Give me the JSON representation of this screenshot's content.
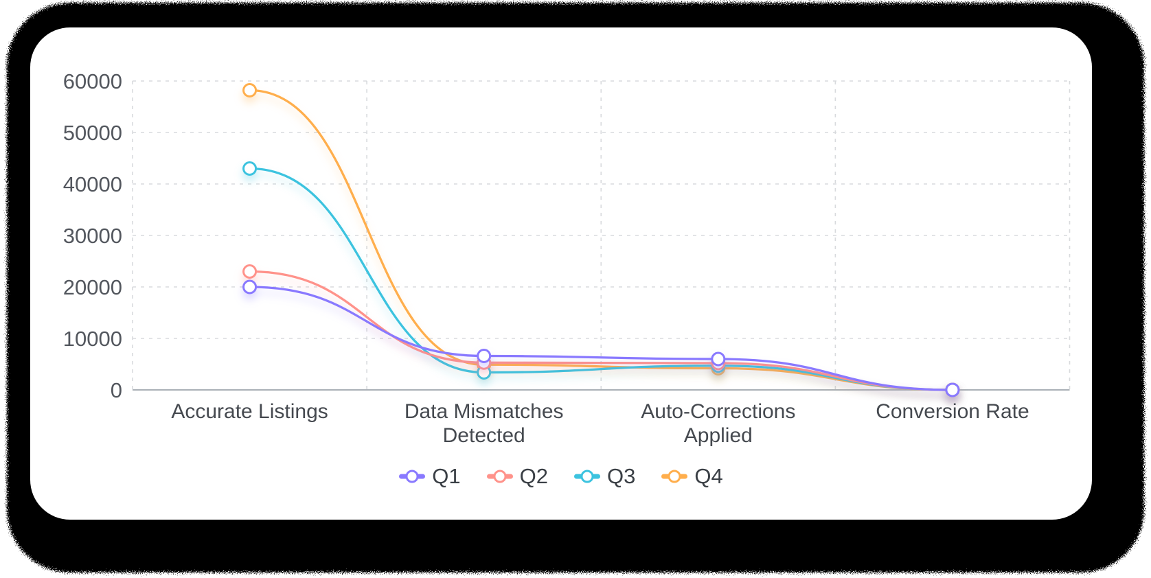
{
  "chart_data": {
    "type": "line",
    "title": "",
    "xlabel": "",
    "ylabel": "",
    "categories": [
      "Accurate Listings",
      "Data Mismatches Detected",
      "Auto-Corrections Applied",
      "Conversion Rate"
    ],
    "series": [
      {
        "name": "Q1",
        "color": "#8979FF",
        "values": [
          20000,
          6600,
          6000,
          2.9
        ]
      },
      {
        "name": "Q2",
        "color": "#FF928A",
        "values": [
          23000,
          5300,
          5200,
          3.2
        ]
      },
      {
        "name": "Q3",
        "color": "#3CC3DF",
        "values": [
          43000,
          3400,
          4700,
          3.6
        ]
      },
      {
        "name": "Q4",
        "color": "#FFAE4C",
        "values": [
          58200,
          4900,
          4200,
          4.1
        ]
      }
    ],
    "ylim": [
      0,
      60000
    ],
    "y_ticks": [
      0,
      10000,
      20000,
      30000,
      40000,
      50000,
      60000
    ],
    "grid": "dashed horizontal and vertical band boundaries",
    "line_style": "smooth curves with open circle markers and soft colored drop shadow",
    "legend_position": "bottom center"
  },
  "styles": {
    "background": "#060606",
    "card": "#ffffff",
    "grid_color": "#d8dadd",
    "axis_line_color": "#aab0b6",
    "ytick_color": "#53575e",
    "xlabel_color": "#45494f",
    "legend_text_color": "#3a3f45"
  }
}
